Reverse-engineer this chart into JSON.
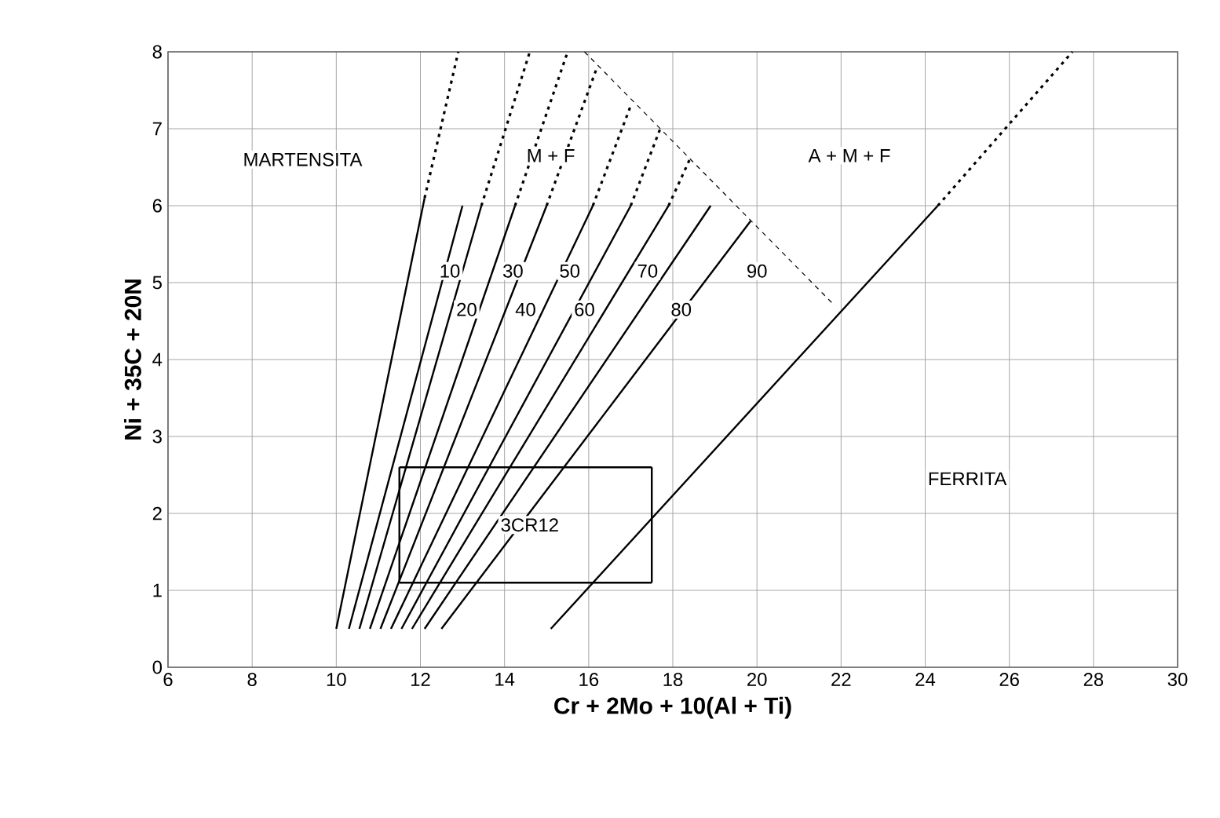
{
  "chart_data": {
    "type": "line",
    "xlabel": "Cr + 2Mo + 10(Al + Ti)",
    "ylabel": "Ni + 35C + 20N",
    "xlim": [
      6,
      30
    ],
    "ylim": [
      0,
      8
    ],
    "xticks": [
      6,
      8,
      10,
      12,
      14,
      16,
      18,
      20,
      22,
      24,
      26,
      28,
      30
    ],
    "yticks": [
      0,
      1,
      2,
      3,
      4,
      5,
      6,
      7,
      8
    ],
    "grid": true,
    "marker": "none",
    "series": [
      {
        "color": "#000000",
        "line_style": "solid",
        "x": [
          10,
          12.1
        ],
        "values": [
          0.5,
          6.1
        ]
      },
      {
        "color": "#000000",
        "line_style": "dotted",
        "x": [
          12.1,
          12.9
        ],
        "values": [
          6.1,
          8
        ]
      },
      {
        "color": "#000000",
        "line_style": "solid",
        "x": [
          15.1,
          24.3
        ],
        "values": [
          0.5,
          6
        ]
      },
      {
        "color": "#000000",
        "line_style": "dotted",
        "x": [
          24.3,
          27.5
        ],
        "values": [
          6,
          8
        ]
      },
      {
        "color": "#000000",
        "line_style": "dashed",
        "x": [
          15.9,
          21.85
        ],
        "values": [
          8,
          4.7
        ]
      },
      {
        "color": "#000000",
        "line_style": "solid",
        "x": [
          10.3,
          13.0
        ],
        "values": [
          0.5,
          6
        ]
      },
      {
        "color": "#000000",
        "line_style": "solid",
        "x": [
          10.55,
          13.45
        ],
        "values": [
          0.5,
          6
        ]
      },
      {
        "color": "#000000",
        "line_style": "solid",
        "x": [
          10.8,
          14.25
        ],
        "values": [
          0.5,
          6
        ]
      },
      {
        "color": "#000000",
        "line_style": "solid",
        "x": [
          11.05,
          15.0
        ],
        "values": [
          0.5,
          6
        ]
      },
      {
        "color": "#000000",
        "line_style": "solid",
        "x": [
          11.3,
          16.1
        ],
        "values": [
          0.5,
          6
        ]
      },
      {
        "color": "#000000",
        "line_style": "solid",
        "x": [
          11.55,
          17.0
        ],
        "values": [
          0.5,
          6
        ]
      },
      {
        "color": "#000000",
        "line_style": "solid",
        "x": [
          11.8,
          17.9
        ],
        "values": [
          0.5,
          6
        ]
      },
      {
        "color": "#000000",
        "line_style": "solid",
        "x": [
          12.1,
          18.9
        ],
        "values": [
          0.5,
          6
        ]
      },
      {
        "color": "#000000",
        "line_style": "solid",
        "x": [
          12.5,
          19.85
        ],
        "values": [
          0.5,
          5.8
        ]
      },
      {
        "color": "#000000",
        "line_style": "dotted",
        "x": [
          13.45,
          14.6
        ],
        "values": [
          6,
          8
        ]
      },
      {
        "color": "#000000",
        "line_style": "dotted",
        "x": [
          14.25,
          15.5
        ],
        "values": [
          6,
          8
        ]
      },
      {
        "color": "#000000",
        "line_style": "dotted",
        "x": [
          15.0,
          16.2
        ],
        "values": [
          6,
          7.8
        ]
      },
      {
        "color": "#000000",
        "line_style": "dotted",
        "x": [
          16.1,
          17.0
        ],
        "values": [
          6,
          7.3
        ]
      },
      {
        "color": "#000000",
        "line_style": "dotted",
        "x": [
          17.0,
          17.7
        ],
        "values": [
          6,
          7
        ]
      },
      {
        "color": "#000000",
        "line_style": "dotted",
        "x": [
          17.9,
          18.4
        ],
        "values": [
          6,
          6.6
        ]
      },
      {
        "color": "#000000",
        "line_style": "solid",
        "x": [
          11.5,
          17.5
        ],
        "values": [
          2.6,
          2.6
        ]
      },
      {
        "color": "#000000",
        "line_style": "solid",
        "x": [
          11.5,
          17.5
        ],
        "values": [
          1.1,
          1.1
        ]
      },
      {
        "color": "#000000",
        "line_style": "solid",
        "x": [
          11.5,
          11.5
        ],
        "values": [
          1.1,
          2.6
        ]
      },
      {
        "color": "#000000",
        "line_style": "solid",
        "x": [
          17.5,
          17.5
        ],
        "values": [
          1.1,
          2.6
        ]
      }
    ],
    "annotations": [
      "MARTENSITA",
      "M + F",
      "A + M + F",
      "FERRITA",
      {
        "text": "3CR12",
        "x": 14.6,
        "y": 1.85
      },
      {
        "text": "10",
        "x": 12.7,
        "y": 5.15
      },
      {
        "text": "30",
        "x": 14.2,
        "y": 5.15
      },
      {
        "text": "50",
        "x": 15.55,
        "y": 5.15
      },
      {
        "text": "70",
        "x": 17.4,
        "y": 5.15
      },
      {
        "text": "90",
        "x": 20.0,
        "y": 5.15
      },
      {
        "text": "20",
        "x": 13.1,
        "y": 4.65
      },
      {
        "text": "40",
        "x": 14.5,
        "y": 4.65
      },
      {
        "text": "60",
        "x": 15.9,
        "y": 4.65
      },
      {
        "text": "80",
        "x": 18.2,
        "y": 4.65
      }
    ]
  }
}
